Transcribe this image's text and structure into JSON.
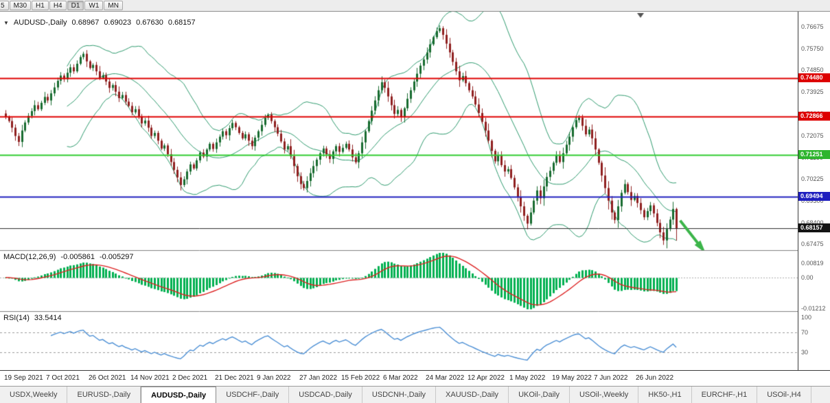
{
  "icons": {
    "dropdown_arrow": "▼"
  },
  "toolbar": {
    "timeframes": [
      "5",
      "M30",
      "H1",
      "H4",
      "D1",
      "W1",
      "MN"
    ],
    "active": "D1"
  },
  "main_chart": {
    "header": {
      "symbol_label": "AUDUSD-,Daily",
      "open": "0.68967",
      "high": "0.69023",
      "low": "0.67630",
      "close": "0.68157"
    }
  },
  "macd": {
    "label": "MACD(12,26,9)",
    "value_main": "-0.005861",
    "value_signal": "-0.005297",
    "axis_top": "0.00819",
    "axis_zero": "0.00",
    "axis_bottom": "-0.01212"
  },
  "rsi": {
    "label": "RSI(14)",
    "value": "33.5414",
    "levels": [
      {
        "text": "100",
        "value": 100
      },
      {
        "text": "70",
        "value": 70
      },
      {
        "text": "30",
        "value": 30
      }
    ]
  },
  "tabs": {
    "active_index": 2,
    "items": [
      "USDX,Weekly",
      "EURUSD-,Daily",
      "AUDUSD-,Daily",
      "USDCHF-,Daily",
      "USDCAD-,Daily",
      "USDCNH-,Daily",
      "XAUUSD-,Daily",
      "UKOil-,Daily",
      "USOil-,Weekly",
      "HK50-,H1",
      "EURCHF-,H1",
      "USOil-,H4"
    ]
  },
  "colors": {
    "candle_up": "#176b2f",
    "candle_down": "#8f1f1f",
    "bollinger": "#2e9b6e",
    "macd_histogram": "#00b050",
    "macd_signal": "#dd2222",
    "rsi_line": "#4b8fd5",
    "arrow": "#3cb54a"
  },
  "chart_data": {
    "type": "candlestick",
    "symbol": "AUDUSD-",
    "timeframe": "Daily",
    "ylim": [
      0.672,
      0.773
    ],
    "first_open": 0.73,
    "closes": [
      0.7285,
      0.7268,
      0.724,
      0.7205,
      0.718,
      0.7228,
      0.7262,
      0.729,
      0.731,
      0.7335,
      0.7318,
      0.7345,
      0.737,
      0.7355,
      0.7385,
      0.741,
      0.7438,
      0.746,
      0.7445,
      0.7472,
      0.7495,
      0.7478,
      0.751,
      0.7538,
      0.7552,
      0.752,
      0.7492,
      0.7505,
      0.7478,
      0.745,
      0.7462,
      0.7435,
      0.7408,
      0.742,
      0.7392,
      0.7365,
      0.7378,
      0.735,
      0.7332,
      0.7305,
      0.7318,
      0.7288,
      0.7258,
      0.727,
      0.724,
      0.7205,
      0.7218,
      0.7185,
      0.7152,
      0.7165,
      0.7128,
      0.7095,
      0.7062,
      0.703,
      0.6998,
      0.7022,
      0.7055,
      0.7085,
      0.7068,
      0.7102,
      0.7135,
      0.7118,
      0.7148,
      0.7172,
      0.715,
      0.7178,
      0.7202,
      0.7225,
      0.7208,
      0.7238,
      0.726,
      0.7242,
      0.7218,
      0.7195,
      0.7212,
      0.7185,
      0.7162,
      0.7198,
      0.7225,
      0.7252,
      0.7282,
      0.7295,
      0.7268,
      0.7242,
      0.7215,
      0.7182,
      0.7148,
      0.7162,
      0.712,
      0.7078,
      0.7035,
      0.7002,
      0.6985,
      0.7015,
      0.7048,
      0.7078,
      0.7105,
      0.7132,
      0.7152,
      0.7128,
      0.7108,
      0.714,
      0.7162,
      0.7138,
      0.7155,
      0.7172,
      0.7148,
      0.7115,
      0.7094,
      0.7132,
      0.7178,
      0.7225,
      0.7268,
      0.7312,
      0.7355,
      0.7398,
      0.7432,
      0.7408,
      0.7372,
      0.7335,
      0.7298,
      0.7315,
      0.7285,
      0.7322,
      0.7362,
      0.7398,
      0.7435,
      0.7468,
      0.7502,
      0.7528,
      0.7558,
      0.7592,
      0.7622,
      0.7648,
      0.766,
      0.7632,
      0.7595,
      0.7558,
      0.7518,
      0.7478,
      0.744,
      0.7458,
      0.7428,
      0.7398,
      0.7372,
      0.7338,
      0.7302,
      0.7265,
      0.7228,
      0.7185,
      0.7142,
      0.7098,
      0.7122,
      0.7082,
      0.7055,
      0.7065,
      0.7028,
      0.6988,
      0.6948,
      0.6908,
      0.6868,
      0.6835,
      0.6882,
      0.6932,
      0.6975,
      0.6942,
      0.6992,
      0.7032,
      0.7058,
      0.7092,
      0.7122,
      0.7095,
      0.7132,
      0.7168,
      0.7202,
      0.7242,
      0.7272,
      0.7282,
      0.7248,
      0.7212,
      0.7232,
      0.7195,
      0.7148,
      0.7092,
      0.7038,
      0.6985,
      0.6932,
      0.6882,
      0.685,
      0.6908,
      0.6965,
      0.7002,
      0.6968,
      0.6935,
      0.6952,
      0.6922,
      0.6892,
      0.6862,
      0.6888,
      0.6912,
      0.6878,
      0.6838,
      0.6798,
      0.6764,
      0.6812,
      0.6852,
      0.6897,
      0.68157
    ],
    "last_candle": {
      "open": 0.68967,
      "high": 0.69023,
      "low": 0.6763,
      "close": 0.68157
    },
    "x_labels": [
      {
        "text": "19 Sep 2021",
        "index": 0
      },
      {
        "text": "7 Oct 2021",
        "index": 13
      },
      {
        "text": "26 Oct 2021",
        "index": 26
      },
      {
        "text": "14 Nov 2021",
        "index": 39
      },
      {
        "text": "2 Dec 2021",
        "index": 52
      },
      {
        "text": "21 Dec 2021",
        "index": 65
      },
      {
        "text": "9 Jan 2022",
        "index": 78
      },
      {
        "text": "27 Jan 2022",
        "index": 91
      },
      {
        "text": "15 Feb 2022",
        "index": 104
      },
      {
        "text": "6 Mar 2022",
        "index": 117
      },
      {
        "text": "24 Mar 2022",
        "index": 130
      },
      {
        "text": "12 Apr 2022",
        "index": 143
      },
      {
        "text": "1 May 2022",
        "index": 156
      },
      {
        "text": "19 May 2022",
        "index": 169
      },
      {
        "text": "7 Jun 2022",
        "index": 182
      },
      {
        "text": "26 Jun 2022",
        "index": 195
      }
    ],
    "y_axis_labels": [
      {
        "text": "0.76675",
        "price": 0.76675
      },
      {
        "text": "0.75750",
        "price": 0.7575
      },
      {
        "text": "0.74850",
        "price": 0.7485
      },
      {
        "text": "0.73925",
        "price": 0.73925
      },
      {
        "text": "0.73000",
        "price": 0.73
      },
      {
        "text": "0.72075",
        "price": 0.72075
      },
      {
        "text": "0.71150",
        "price": 0.7115
      },
      {
        "text": "0.70225",
        "price": 0.70225
      },
      {
        "text": "0.69300",
        "price": 0.693
      },
      {
        "text": "0.68400",
        "price": 0.684
      },
      {
        "text": "0.67475",
        "price": 0.67475
      }
    ],
    "hlines": [
      {
        "price": 0.7448,
        "color": "#e00000",
        "width": 2
      },
      {
        "price": 0.72866,
        "color": "#e00000",
        "width": 2
      },
      {
        "price": 0.71251,
        "color": "#2ecc2e",
        "width": 2
      },
      {
        "price": 0.69494,
        "color": "#2020c0",
        "width": 2
      }
    ],
    "price_tags": [
      {
        "text": "0.74480",
        "price": 0.7448,
        "color": "#dd0000"
      },
      {
        "text": "0.72866",
        "price": 0.72866,
        "color": "#dd0000"
      },
      {
        "text": "0.71251",
        "price": 0.71251,
        "color": "#2db52d"
      },
      {
        "text": "0.69494",
        "price": 0.69494,
        "color": "#1f1fbf"
      },
      {
        "text": "0.68157",
        "price": 0.68157,
        "color": "#141414"
      }
    ],
    "bid_line": {
      "price": 0.68157,
      "color": "#2b2b2b"
    },
    "indicators": {
      "bollinger": {
        "period": 20,
        "deviation": 2
      },
      "macd": {
        "fast": 12,
        "slow": 26,
        "signal": 9
      },
      "rsi": {
        "period": 14
      }
    },
    "arrow": {
      "from_index": 208.2,
      "from_price": 0.6848,
      "to_index": 214.5,
      "to_price": 0.6738
    }
  }
}
